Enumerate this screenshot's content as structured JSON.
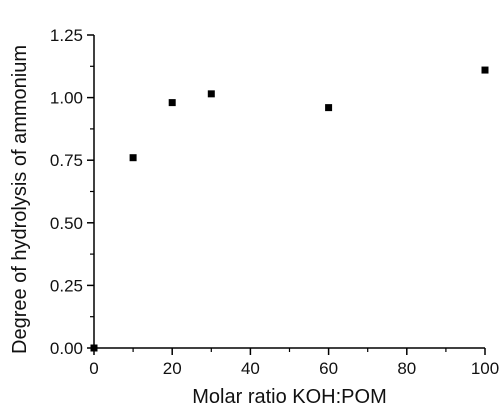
{
  "chart_data": {
    "type": "scatter",
    "title": "",
    "xlabel": "Molar ratio KOH:POM",
    "ylabel": "Degree of hydrolysis of ammonium",
    "xlim": [
      0,
      100
    ],
    "ylim": [
      0,
      1.25
    ],
    "x_ticks": [
      0,
      20,
      40,
      60,
      80,
      100
    ],
    "x_tick_labels": [
      "0",
      "20",
      "40",
      "60",
      "80",
      "100"
    ],
    "y_ticks": [
      0,
      0.25,
      0.5,
      0.75,
      1.0,
      1.25
    ],
    "y_tick_labels": [
      "0.00",
      "0.25",
      "0.50",
      "0.75",
      "1.00",
      "1.25"
    ],
    "grid": false,
    "legend": "none",
    "marker": "square",
    "series": [
      {
        "x": [
          0,
          10,
          20,
          30,
          60,
          100
        ],
        "y": [
          0.0,
          0.76,
          0.98,
          1.015,
          0.96,
          1.11
        ],
        "color": "#000000"
      }
    ]
  }
}
